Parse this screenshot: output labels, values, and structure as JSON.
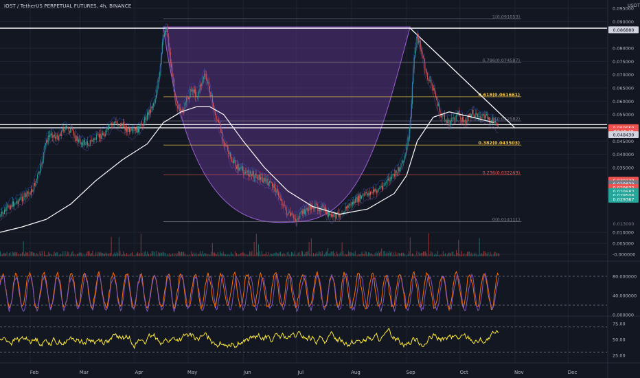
{
  "header": "IOST / TetherUS PERPETUAL FUTURES, 4h, BINANCE",
  "chart_data": {
    "type": "line",
    "title": "IOST / TetherUS PERPETUAL FUTURES, 4h, BINANCE",
    "price_currency": "USDT",
    "x_tick_labels": [
      "Feb",
      "Mar",
      "Apr",
      "May",
      "Jun",
      "Jul",
      "Aug",
      "Sep",
      "Oct",
      "Nov",
      "Dec"
    ],
    "price_ticks": [
      "0.095000",
      "0.090000",
      "0.080000",
      "0.075000",
      "0.070000",
      "0.065000",
      "0.060000",
      "0.055000",
      "0.045000",
      "0.040000",
      "0.035000",
      "0.010000",
      "0.005000",
      "-0.000000"
    ],
    "price_labels": [
      {
        "text": "0.086880",
        "v": 0.08688,
        "bg": "#d1d4dc",
        "fg": "#131722"
      },
      {
        "text": "0.050050",
        "v": 0.05005,
        "bg": "#ef5350",
        "fg": "#ffffff"
      },
      {
        "text": "02:16:48",
        "v": 0.0487,
        "bg": "#ef5350",
        "fg": "#ffffff"
      },
      {
        "text": "0.048430",
        "v": 0.0474,
        "bg": "#d1d4dc",
        "fg": "#131722"
      },
      {
        "text": "0.030139",
        "v": 0.03014,
        "bg": "#ef5350",
        "fg": "#ffffff"
      },
      {
        "text": "0.029830",
        "v": 0.0288,
        "bg": "#787b86",
        "fg": "#ffffff"
      },
      {
        "text": "0.029632",
        "v": 0.0273,
        "bg": "#ef5350",
        "fg": "#ffffff"
      },
      {
        "text": "0.029582",
        "v": 0.0258,
        "bg": "#26a69a",
        "fg": "#ffffff"
      },
      {
        "text": "0.029506",
        "v": 0.0243,
        "bg": "#26a69a",
        "fg": "#ffffff"
      },
      {
        "text": "0.029367",
        "v": 0.0228,
        "bg": "#26a69a",
        "fg": "#ffffff"
      },
      {
        "text": "0.013000",
        "v": 0.0133,
        "bg": "#131722",
        "fg": "#787b86"
      }
    ],
    "fib_levels": [
      {
        "label": "1(0.091053)",
        "value": 0.091053,
        "color": "#787b86",
        "bold": false
      },
      {
        "label": "0.786(0.074587)",
        "value": 0.074587,
        "color": "#787b86",
        "bold": false
      },
      {
        "label": "0.618(0.061661)",
        "value": 0.061661,
        "color": "#f7c844",
        "bold": true
      },
      {
        "label": "0.5(0.052582)",
        "value": 0.052582,
        "color": "#787b86",
        "bold": false
      },
      {
        "label": "0.382(0.043503)",
        "value": 0.043503,
        "color": "#f7c844",
        "bold": true
      },
      {
        "label": "0.236(0.032269)",
        "value": 0.032269,
        "color": "#ef5350",
        "bold": false
      },
      {
        "label": "0(0.014111)",
        "value": 0.014111,
        "color": "#787b86",
        "bold": false
      }
    ],
    "horizontal_lines": [
      0.0875,
      0.0512,
      0.05
    ],
    "trendline": {
      "from": [
        "2021-09-03",
        0.0875
      ],
      "to": [
        "2021-10-24",
        0.0502
      ]
    },
    "cup_pattern": {
      "left_rim": [
        "2021-04-17",
        0.088
      ],
      "bottom": [
        "2021-07-03",
        0.0142
      ],
      "right_rim": [
        "2021-09-03",
        0.088
      ]
    },
    "series": [
      {
        "name": "",
        "dates": [
          "2021-01-15",
          "2021-01-20",
          "2021-01-27",
          "2021-02-02",
          "2021-02-07",
          "2021-02-10",
          "2021-02-13",
          "2021-02-16",
          "2021-02-20",
          "2021-02-24",
          "2021-02-28",
          "2021-03-05",
          "2021-03-10",
          "2021-03-15",
          "2021-03-20",
          "2021-03-25",
          "2021-03-30",
          "2021-04-04",
          "2021-04-08",
          "2021-04-12",
          "2021-04-15",
          "2021-04-17",
          "2021-04-19",
          "2021-04-21",
          "2021-04-24",
          "2021-04-27",
          "2021-04-30",
          "2021-05-03",
          "2021-05-06",
          "2021-05-10",
          "2021-05-13",
          "2021-05-16",
          "2021-05-19",
          "2021-05-21",
          "2021-05-25",
          "2021-05-29",
          "2021-06-03",
          "2021-06-08",
          "2021-06-13",
          "2021-06-18",
          "2021-06-22",
          "2021-06-26",
          "2021-07-01",
          "2021-07-05",
          "2021-07-10",
          "2021-07-16",
          "2021-07-20",
          "2021-07-25",
          "2021-07-30",
          "2021-08-05",
          "2021-08-10",
          "2021-08-15",
          "2021-08-20",
          "2021-08-25",
          "2021-08-29",
          "2021-09-01",
          "2021-09-03",
          "2021-09-05",
          "2021-09-07",
          "2021-09-09",
          "2021-09-12",
          "2021-09-16",
          "2021-09-20",
          "2021-09-25",
          "2021-09-30",
          "2021-10-04",
          "2021-10-08",
          "2021-10-12",
          "2021-10-16",
          "2021-10-20",
          "2021-10-23"
        ],
        "values": [
          0.016,
          0.02,
          0.023,
          0.026,
          0.035,
          0.045,
          0.048,
          0.046,
          0.05,
          0.049,
          0.045,
          0.044,
          0.046,
          0.048,
          0.052,
          0.051,
          0.048,
          0.05,
          0.055,
          0.06,
          0.07,
          0.085,
          0.088,
          0.075,
          0.06,
          0.055,
          0.06,
          0.065,
          0.062,
          0.07,
          0.065,
          0.055,
          0.05,
          0.045,
          0.038,
          0.035,
          0.033,
          0.032,
          0.03,
          0.028,
          0.023,
          0.017,
          0.015,
          0.018,
          0.02,
          0.019,
          0.016,
          0.017,
          0.02,
          0.023,
          0.025,
          0.026,
          0.029,
          0.032,
          0.036,
          0.042,
          0.05,
          0.075,
          0.085,
          0.08,
          0.07,
          0.065,
          0.055,
          0.052,
          0.055,
          0.052,
          0.056,
          0.054,
          0.054,
          0.052,
          0.05
        ]
      },
      {
        "name": "",
        "dates": [
          "2021-01-15",
          "2021-01-27",
          "2021-02-10",
          "2021-02-24",
          "2021-03-10",
          "2021-03-25",
          "2021-04-08",
          "2021-04-17",
          "2021-04-27",
          "2021-05-06",
          "2021-05-13",
          "2021-05-21",
          "2021-06-01",
          "2021-06-13",
          "2021-06-26",
          "2021-07-10",
          "2021-07-25",
          "2021-08-10",
          "2021-08-25",
          "2021-09-01",
          "2021-09-07",
          "2021-09-16",
          "2021-09-25",
          "2021-10-08",
          "2021-10-20"
        ],
        "values": [
          0.01,
          0.012,
          0.015,
          0.021,
          0.03,
          0.038,
          0.044,
          0.052,
          0.056,
          0.058,
          0.058,
          0.055,
          0.045,
          0.035,
          0.026,
          0.02,
          0.017,
          0.019,
          0.025,
          0.032,
          0.045,
          0.054,
          0.056,
          0.054,
          0.052
        ]
      }
    ],
    "volume": {
      "axis_ticks": [
        "0.010000",
        "0.005000",
        "-0.000000"
      ]
    },
    "oscillators": [
      {
        "name": "",
        "axis_ticks": [
          "80.000000",
          "40.000000",
          "0.000000"
        ],
        "dashed_levels": [
          80,
          20
        ],
        "ylim": [
          0,
          100
        ],
        "colors": [
          "#ff6d00",
          "#7e57c2"
        ]
      },
      {
        "name": "",
        "axis_ticks": [
          "75.00",
          "50.00",
          "25.00"
        ],
        "dashed_levels": [
          70,
          30
        ],
        "ylim": [
          15,
          85
        ],
        "colors": [
          "#ffeb3b"
        ]
      }
    ],
    "ylim": [
      0.0,
      0.097
    ],
    "xlim": [
      "2021-01-15",
      "2021-12-31"
    ]
  },
  "colors": {
    "background": "#131722",
    "grid": "#1f2430",
    "axis_text": "#b2b5be",
    "up": "#26a69a",
    "down": "#ef5350",
    "ma": "#ffffff",
    "cup_fill": "#7b3fb5",
    "hline": "#ffffff"
  }
}
